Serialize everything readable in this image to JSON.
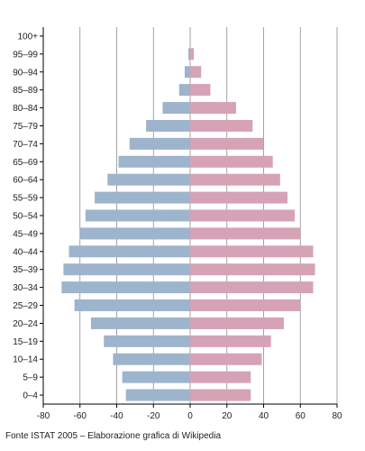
{
  "caption": "Fonte ISTAT 2005 – Elaborazione grafica di Wikipedia",
  "colors": {
    "male": "#9db4cc",
    "female": "#d6a2b6",
    "grid": "#8c8c8c",
    "axis": "#000000"
  },
  "chart_data": {
    "type": "bar",
    "orientation": "horizontal",
    "title": "",
    "xlabel": "",
    "ylabel": "",
    "xlim": [
      -80,
      80
    ],
    "x_ticks": [
      -80,
      -60,
      -40,
      -20,
      0,
      20,
      40,
      60,
      80
    ],
    "grid": true,
    "categories": [
      "0–4",
      "5–9",
      "10–14",
      "15–19",
      "20–24",
      "25–29",
      "30–34",
      "35–39",
      "40–44",
      "45–49",
      "50–54",
      "55–59",
      "60–64",
      "65–69",
      "70–74",
      "75–79",
      "80–84",
      "85–89",
      "90–94",
      "95–99",
      "100+"
    ],
    "series": [
      {
        "values": [
          -35,
          -37,
          -42,
          -47,
          -54,
          -63,
          -70,
          -69,
          -66,
          -60,
          -57,
          -52,
          -45,
          -39,
          -33,
          -24,
          -15,
          -6,
          -3,
          -1,
          0
        ]
      },
      {
        "values": [
          33,
          33,
          39,
          44,
          51,
          60,
          67,
          68,
          67,
          60,
          57,
          53,
          49,
          45,
          40,
          34,
          25,
          11,
          6,
          2,
          0
        ]
      }
    ]
  }
}
